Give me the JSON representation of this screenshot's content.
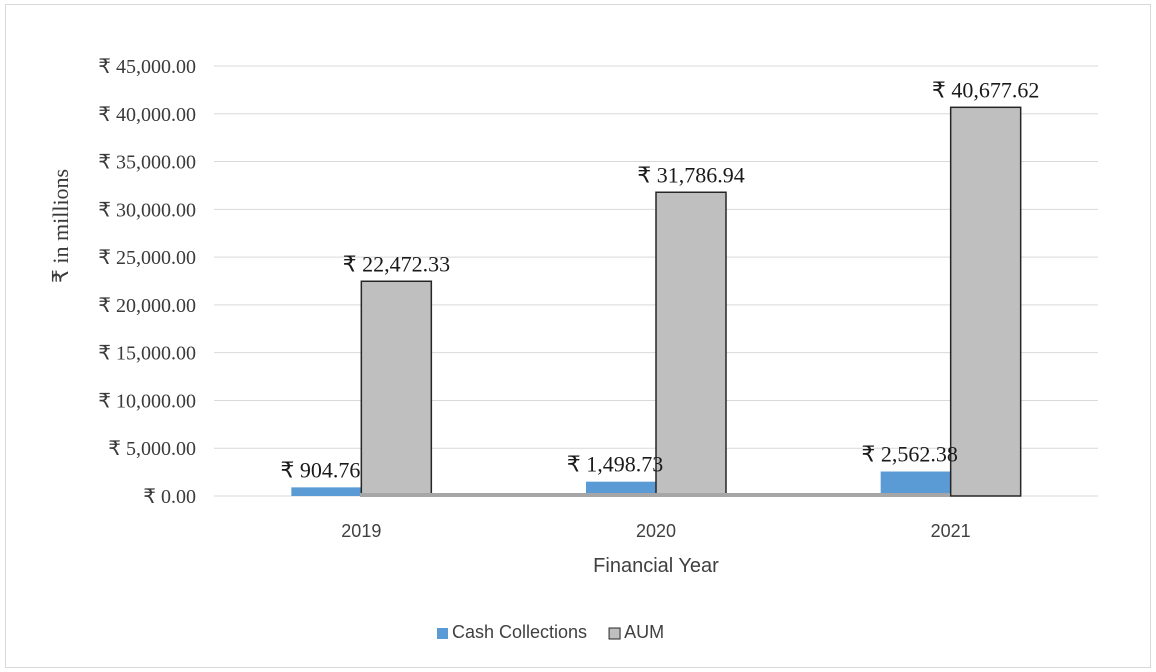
{
  "chart_data": {
    "type": "bar",
    "categories": [
      "2019",
      "2020",
      "2021"
    ],
    "series": [
      {
        "name": "Cash Collections",
        "values": [
          904.76,
          1498.73,
          2562.38
        ],
        "labels": [
          "₹ 904.76",
          "₹ 1,498.73",
          "₹ 2,562.38"
        ],
        "color": "#5b9bd5"
      },
      {
        "name": "AUM",
        "values": [
          22472.33,
          31786.94,
          40677.62
        ],
        "labels": [
          "₹ 22,472.33",
          "₹ 31,786.94",
          "₹ 40,677.62"
        ],
        "color": "#bfbfbf"
      }
    ],
    "xlabel": "Financial Year",
    "ylabel": "₹ in millions",
    "ylim": [
      0,
      45000
    ],
    "yticks": [
      0,
      5000,
      10000,
      15000,
      20000,
      25000,
      30000,
      35000,
      40000,
      45000
    ],
    "ytick_labels": [
      "₹ 0.00",
      "₹ 5,000.00",
      "₹ 10,000.00",
      "₹ 15,000.00",
      "₹ 20,000.00",
      "₹ 25,000.00",
      "₹ 30,000.00",
      "₹ 35,000.00",
      "₹ 40,000.00",
      "₹ 45,000.00"
    ],
    "grid": true,
    "legend_position": "bottom",
    "border_color": "#262626",
    "gridline_color": "#d9d9d9"
  }
}
